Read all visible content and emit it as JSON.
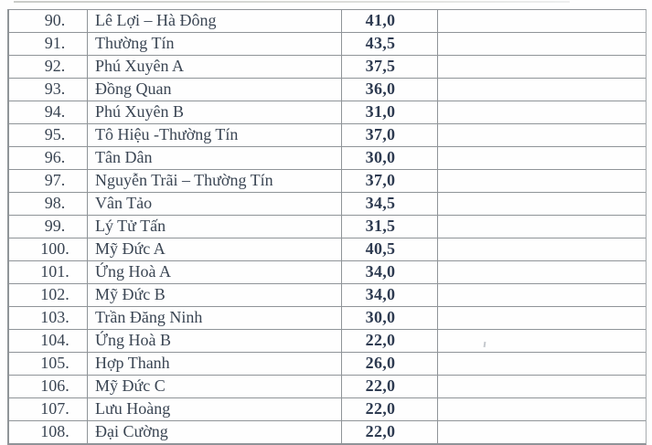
{
  "colors": {
    "page-bg": "#fefefe",
    "border": "#8f9498",
    "border-light": "#a7acb0",
    "text": "#3a4553",
    "score-text": "#2e3b51"
  },
  "table": {
    "columns": [
      "index",
      "school_name",
      "score",
      "notes"
    ],
    "rows": [
      {
        "index": "90.",
        "name": "Lê Lợi – Hà Đông",
        "score": "41,0",
        "notes": ""
      },
      {
        "index": "91.",
        "name": "Thường Tín",
        "score": "43,5",
        "notes": ""
      },
      {
        "index": "92.",
        "name": "Phú Xuyên A",
        "score": "37,5",
        "notes": ""
      },
      {
        "index": "93.",
        "name": "Đồng Quan",
        "score": "36,0",
        "notes": ""
      },
      {
        "index": "94.",
        "name": "Phú Xuyên B",
        "score": "31,0",
        "notes": ""
      },
      {
        "index": "95.",
        "name": "Tô Hiệu -Thường Tín",
        "score": "37,0",
        "notes": ""
      },
      {
        "index": "96.",
        "name": "Tân Dân",
        "score": "30,0",
        "notes": ""
      },
      {
        "index": "97.",
        "name": "Nguyễn Trãi – Thường Tín",
        "score": "37,0",
        "notes": ""
      },
      {
        "index": "98.",
        "name": "Vân Tảo",
        "score": "34,5",
        "notes": ""
      },
      {
        "index": "99.",
        "name": "Lý Tử Tấn",
        "score": "31,5",
        "notes": ""
      },
      {
        "index": "100.",
        "name": "Mỹ Đức A",
        "score": "40,5",
        "notes": ""
      },
      {
        "index": "101.",
        "name": "Ứng Hoà A",
        "score": "34,0",
        "notes": ""
      },
      {
        "index": "102.",
        "name": "Mỹ Đức B",
        "score": "34,0",
        "notes": ""
      },
      {
        "index": "103.",
        "name": "Trần Đăng Ninh",
        "score": "30,0",
        "notes": ""
      },
      {
        "index": "104.",
        "name": "Ứng Hoà B",
        "score": "22,0",
        "notes": ""
      },
      {
        "index": "105.",
        "name": "Hợp Thanh",
        "score": "26,0",
        "notes": ""
      },
      {
        "index": "106.",
        "name": "Mỹ Đức C",
        "score": "22,0",
        "notes": ""
      },
      {
        "index": "107.",
        "name": "Lưu Hoàng",
        "score": "22,0",
        "notes": ""
      },
      {
        "index": "108.",
        "name": "Đại Cường",
        "score": "22,0",
        "notes": ""
      }
    ]
  }
}
